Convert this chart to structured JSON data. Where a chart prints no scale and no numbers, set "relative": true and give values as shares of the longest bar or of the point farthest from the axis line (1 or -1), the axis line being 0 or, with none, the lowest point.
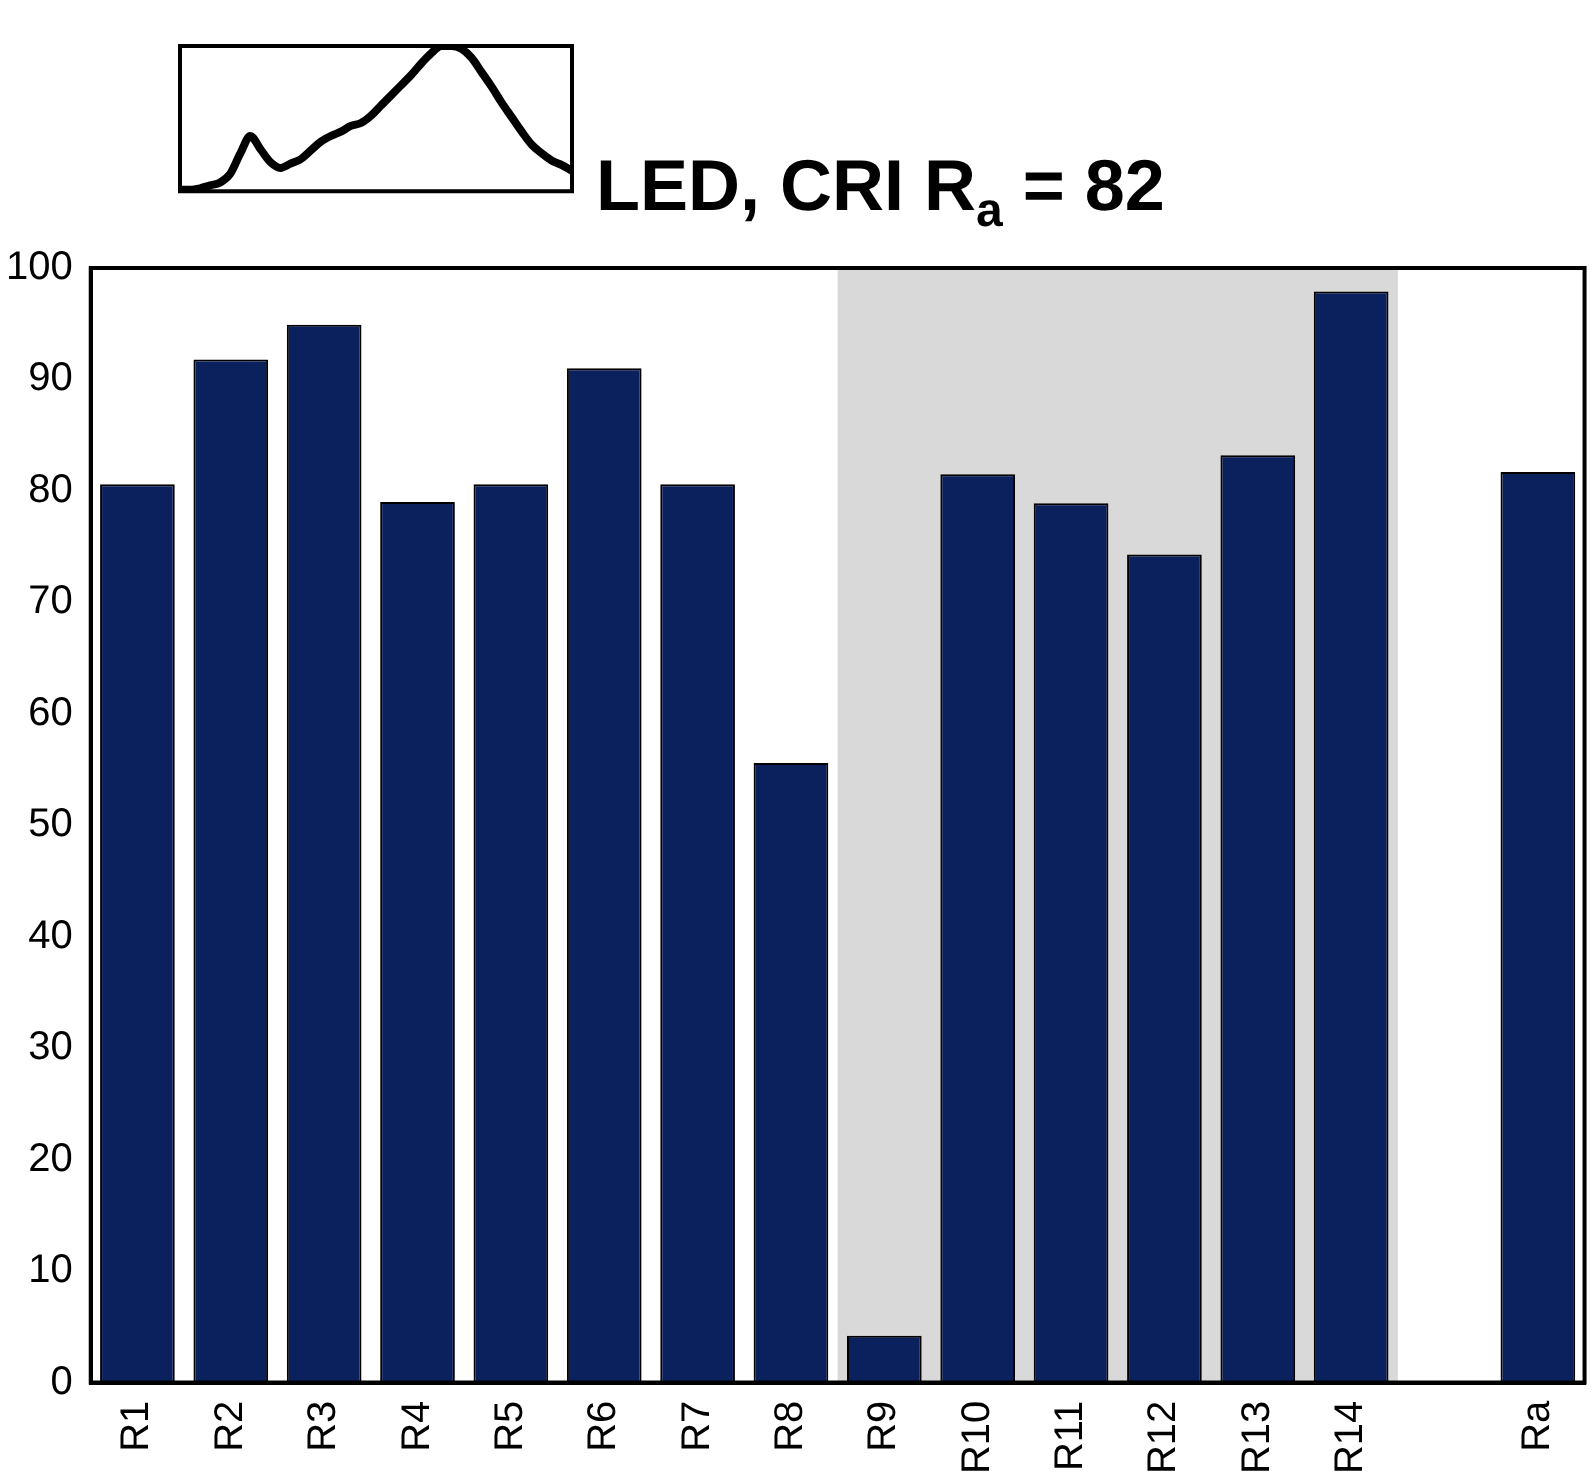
{
  "chart_data": [
    {
      "type": "line",
      "relative": true,
      "color": "#000000",
      "marker": "none",
      "categories": [
        null,
        null,
        null,
        null,
        null,
        null,
        null,
        null,
        null,
        null,
        null,
        null,
        null,
        null,
        null,
        null,
        null,
        null,
        null,
        null,
        null,
        null,
        null,
        null,
        null,
        null,
        null,
        null,
        null,
        null,
        null,
        null,
        null,
        null,
        null,
        null,
        null,
        null,
        null,
        null
      ],
      "values": [
        0.01,
        0.01,
        0.02,
        0.04,
        0.06,
        0.12,
        0.26,
        0.38,
        0.29,
        0.2,
        0.16,
        0.19,
        0.22,
        0.28,
        0.34,
        0.38,
        0.41,
        0.45,
        0.47,
        0.52,
        0.59,
        0.66,
        0.73,
        0.8,
        0.88,
        0.95,
        1,
        1,
        0.98,
        0.92,
        0.82,
        0.72,
        0.61,
        0.51,
        0.41,
        0.32,
        0.26,
        0.21,
        0.18,
        0.14
      ],
      "grid": false,
      "legend": false
    },
    {
      "type": "bar",
      "title": "LED, CRI R$_{a}$ = 82",
      "categories": [
        "R1",
        "R2",
        "R3",
        "R4",
        "R5",
        "R6",
        "R7",
        "R8",
        "R9",
        "R10",
        "R11",
        "R12",
        "R13",
        "R14",
        null,
        "Ra"
      ],
      "values": [
        80.6,
        91.8,
        94.9,
        79.0,
        80.6,
        91.0,
        80.6,
        55.6,
        4.2,
        81.5,
        78.9,
        74.3,
        83.2,
        97.9,
        null,
        81.7
      ],
      "color": "#0b215e",
      "ylim": [
        0,
        100
      ],
      "yticks": [
        0,
        10,
        20,
        30,
        40,
        50,
        60,
        70,
        80,
        90,
        100
      ],
      "bands": [
        {
          "axis": "x",
          "from": "R9",
          "to": "R14",
          "color": "#d9d9d9"
        }
      ],
      "grid": false,
      "legend": false
    }
  ]
}
